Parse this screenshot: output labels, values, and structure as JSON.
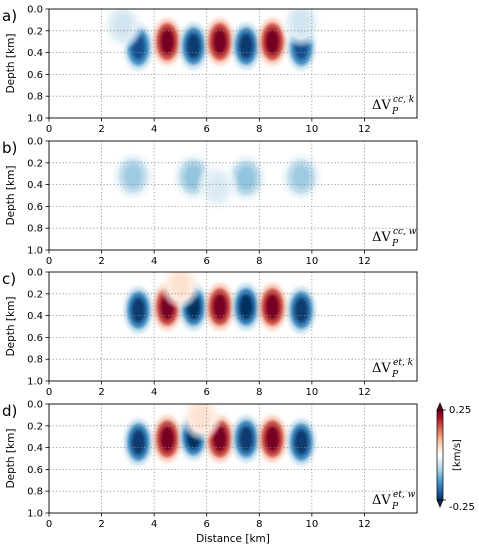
{
  "chart_data": [
    {
      "type": "heatmap",
      "panel_label": "a)",
      "annotation": {
        "base": "ΔV",
        "sub": "P",
        "sup": "cc, k"
      },
      "xlim": [
        0,
        14
      ],
      "ylim": [
        1.0,
        0.0
      ],
      "ylabel": "Depth [km]",
      "grid": true,
      "anomalies": [
        {
          "x": 3.4,
          "z": 0.35,
          "value": -0.22
        },
        {
          "x": 4.5,
          "z": 0.3,
          "value": 0.24
        },
        {
          "x": 5.5,
          "z": 0.34,
          "value": -0.24
        },
        {
          "x": 6.5,
          "z": 0.3,
          "value": 0.24
        },
        {
          "x": 7.5,
          "z": 0.34,
          "value": -0.24
        },
        {
          "x": 8.5,
          "z": 0.3,
          "value": 0.24
        },
        {
          "x": 9.6,
          "z": 0.35,
          "value": -0.22
        },
        {
          "x": 2.8,
          "z": 0.15,
          "value": -0.05
        },
        {
          "x": 9.6,
          "z": 0.13,
          "value": -0.05
        }
      ]
    },
    {
      "type": "heatmap",
      "panel_label": "b)",
      "annotation": {
        "base": "ΔV",
        "sub": "P",
        "sup": "cc, w"
      },
      "xlim": [
        0,
        14
      ],
      "ylim": [
        1.0,
        0.0
      ],
      "ylabel": "Depth [km]",
      "grid": true,
      "anomalies": [
        {
          "x": 3.2,
          "z": 0.32,
          "value": -0.09
        },
        {
          "x": 5.5,
          "z": 0.33,
          "value": -0.1
        },
        {
          "x": 7.5,
          "z": 0.34,
          "value": -0.1
        },
        {
          "x": 9.6,
          "z": 0.33,
          "value": -0.09
        },
        {
          "x": 6.4,
          "z": 0.42,
          "value": -0.04
        }
      ]
    },
    {
      "type": "heatmap",
      "panel_label": "c)",
      "annotation": {
        "base": "ΔV",
        "sub": "P",
        "sup": "et, k"
      },
      "xlim": [
        0,
        14
      ],
      "ylim": [
        1.0,
        0.0
      ],
      "ylabel": "Depth [km]",
      "grid": true,
      "anomalies": [
        {
          "x": 3.4,
          "z": 0.35,
          "value": -0.24
        },
        {
          "x": 4.5,
          "z": 0.32,
          "value": 0.24
        },
        {
          "x": 5.5,
          "z": 0.32,
          "value": -0.25
        },
        {
          "x": 6.5,
          "z": 0.32,
          "value": 0.24
        },
        {
          "x": 7.5,
          "z": 0.32,
          "value": -0.25
        },
        {
          "x": 8.5,
          "z": 0.32,
          "value": 0.24
        },
        {
          "x": 9.6,
          "z": 0.35,
          "value": -0.24
        },
        {
          "x": 5.0,
          "z": 0.12,
          "value": 0.04
        }
      ]
    },
    {
      "type": "heatmap",
      "panel_label": "d)",
      "annotation": {
        "base": "ΔV",
        "sub": "P",
        "sup": "et, w"
      },
      "xlim": [
        0,
        14
      ],
      "ylim": [
        1.0,
        0.0
      ],
      "ylabel": "Depth [km]",
      "xlabel": "Distance [km]",
      "grid": true,
      "anomalies": [
        {
          "x": 3.4,
          "z": 0.35,
          "value": -0.24
        },
        {
          "x": 4.5,
          "z": 0.32,
          "value": 0.24
        },
        {
          "x": 5.5,
          "z": 0.3,
          "value": -0.25
        },
        {
          "x": 6.5,
          "z": 0.32,
          "value": 0.24
        },
        {
          "x": 7.5,
          "z": 0.32,
          "value": -0.24
        },
        {
          "x": 8.5,
          "z": 0.32,
          "value": 0.24
        },
        {
          "x": 9.6,
          "z": 0.35,
          "value": -0.24
        },
        {
          "x": 5.8,
          "z": 0.12,
          "value": 0.04
        }
      ]
    }
  ],
  "xticks": [
    "0",
    "2",
    "4",
    "6",
    "8",
    "10",
    "12"
  ],
  "yticks": [
    "0.0",
    "0.2",
    "0.4",
    "0.6",
    "0.8",
    "1.0"
  ],
  "colorbar": {
    "label": "[km/s]",
    "max_label": "0.25",
    "min_label": "-0.25",
    "range": [
      -0.25,
      0.25
    ],
    "colormap": [
      "#053061",
      "#2166ac",
      "#4393c3",
      "#92c5de",
      "#d1e5f0",
      "#ffffff",
      "#fddbc7",
      "#f4a582",
      "#d6604d",
      "#b2182b",
      "#67001f"
    ]
  }
}
